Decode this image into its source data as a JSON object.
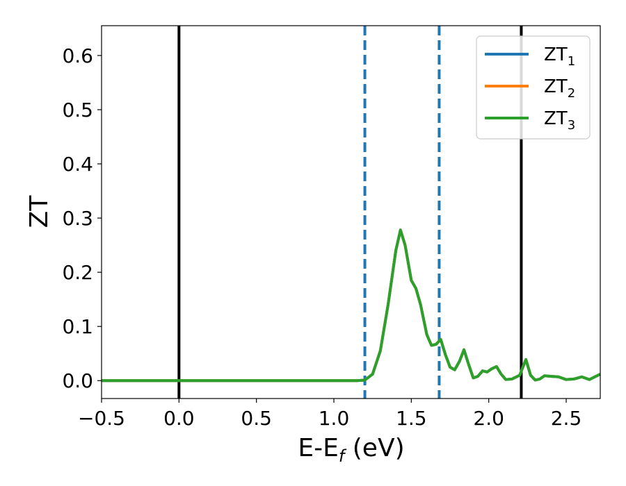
{
  "chart_data": {
    "type": "line",
    "xlabel": "E-E_f (eV)",
    "ylabel": "ZT",
    "xlim": [
      -0.5,
      2.72
    ],
    "ylim": [
      -0.033,
      0.655
    ],
    "xticks": [
      -0.5,
      0.0,
      0.5,
      1.0,
      1.5,
      2.0,
      2.5
    ],
    "xtick_labels": [
      "−0.5",
      "0.0",
      "0.5",
      "1.0",
      "1.5",
      "2.0",
      "2.5"
    ],
    "yticks": [
      0.0,
      0.1,
      0.2,
      0.3,
      0.4,
      0.5,
      0.6
    ],
    "ytick_labels": [
      "0.0",
      "0.1",
      "0.2",
      "0.3",
      "0.4",
      "0.5",
      "0.6"
    ],
    "grid": false,
    "legend_position": "top-right",
    "colors": {
      "ZT1": "#1f77b4",
      "ZT2": "#ff7f0e",
      "ZT3": "#2ca02c",
      "black_line": "#000000"
    },
    "vertical_lines": [
      {
        "x": 0.0,
        "style": "solid",
        "color": "#000000"
      },
      {
        "x": 2.21,
        "style": "solid",
        "color": "#000000"
      },
      {
        "x": 1.2,
        "style": "dashed",
        "color": "#1f77b4"
      },
      {
        "x": 1.68,
        "style": "dashed",
        "color": "#1f77b4"
      }
    ],
    "x": [
      -0.5,
      0.0,
      0.5,
      1.0,
      1.15,
      1.2,
      1.25,
      1.3,
      1.35,
      1.4,
      1.43,
      1.46,
      1.5,
      1.53,
      1.56,
      1.6,
      1.63,
      1.66,
      1.69,
      1.72,
      1.75,
      1.78,
      1.81,
      1.84,
      1.87,
      1.9,
      1.93,
      1.96,
      1.99,
      2.02,
      2.05,
      2.08,
      2.11,
      2.15,
      2.2,
      2.24,
      2.27,
      2.3,
      2.33,
      2.36,
      2.4,
      2.45,
      2.5,
      2.55,
      2.6,
      2.65,
      2.72
    ],
    "series": [
      {
        "name": "ZT_1",
        "label_main": "ZT",
        "label_sub": "1",
        "color": "#1f77b4",
        "values": [
          0.0,
          0.0,
          0.0,
          0.0,
          0.0,
          0.001,
          0.012,
          0.055,
          0.14,
          0.24,
          0.278,
          0.25,
          0.185,
          0.17,
          0.14,
          0.085,
          0.065,
          0.067,
          0.076,
          0.048,
          0.025,
          0.02,
          0.035,
          0.057,
          0.03,
          0.005,
          0.008,
          0.018,
          0.016,
          0.022,
          0.026,
          0.012,
          0.002,
          0.003,
          0.01,
          0.039,
          0.01,
          0.001,
          0.003,
          0.009,
          0.008,
          0.007,
          0.002,
          0.003,
          0.007,
          0.002,
          0.012
        ]
      },
      {
        "name": "ZT_2",
        "label_main": "ZT",
        "label_sub": "2",
        "color": "#ff7f0e",
        "values": [
          0.0,
          0.0,
          0.0,
          0.0,
          0.0,
          0.001,
          0.012,
          0.055,
          0.14,
          0.24,
          0.278,
          0.25,
          0.185,
          0.17,
          0.14,
          0.085,
          0.065,
          0.067,
          0.076,
          0.048,
          0.025,
          0.02,
          0.035,
          0.057,
          0.03,
          0.005,
          0.008,
          0.018,
          0.016,
          0.022,
          0.026,
          0.012,
          0.002,
          0.003,
          0.01,
          0.039,
          0.01,
          0.001,
          0.003,
          0.009,
          0.008,
          0.007,
          0.002,
          0.003,
          0.007,
          0.002,
          0.012
        ]
      },
      {
        "name": "ZT_3",
        "label_main": "ZT",
        "label_sub": "3",
        "color": "#2ca02c",
        "values": [
          0.0,
          0.0,
          0.0,
          0.0,
          0.0,
          0.001,
          0.012,
          0.055,
          0.14,
          0.24,
          0.278,
          0.25,
          0.185,
          0.17,
          0.14,
          0.085,
          0.065,
          0.067,
          0.076,
          0.048,
          0.025,
          0.02,
          0.035,
          0.057,
          0.03,
          0.005,
          0.008,
          0.018,
          0.016,
          0.022,
          0.026,
          0.012,
          0.002,
          0.003,
          0.01,
          0.039,
          0.01,
          0.001,
          0.003,
          0.009,
          0.008,
          0.007,
          0.002,
          0.003,
          0.007,
          0.002,
          0.012
        ]
      }
    ]
  }
}
